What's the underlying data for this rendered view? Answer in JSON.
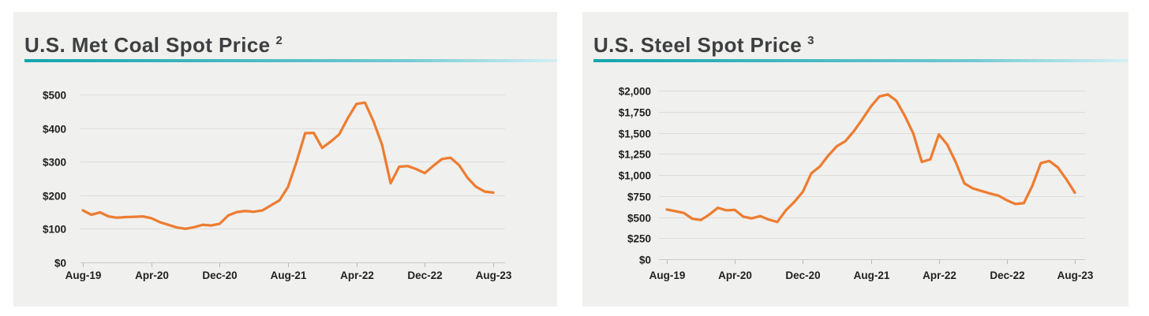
{
  "colors": {
    "line": "#ED7D31",
    "card_background": "#F0F0EF",
    "accent_teal_start": "#14A5AC",
    "accent_teal_mid": "#6FC9D0",
    "accent_teal_end": "#D3EFF3",
    "gridline": "#DCDCDA",
    "axis_line": "#C9C9C7",
    "tick_mark": "#B9B9B7",
    "axis_text": "#1F1F1F",
    "title_text": "#3E3F41"
  },
  "chart_data": [
    {
      "type": "line",
      "title": "U.S. Met Coal Spot Price",
      "footnote_marker": "2",
      "x_frequency": "monthly",
      "x_start": "Aug-19",
      "x_end": "Aug-23",
      "x_tick_labels": [
        "Aug-19",
        "Apr-20",
        "Dec-20",
        "Aug-21",
        "Apr-22",
        "Dec-22",
        "Aug-23"
      ],
      "x_tick_interval_months": 8,
      "ylim": [
        0,
        500
      ],
      "grid": true,
      "legend": "none",
      "y_ticks": [
        {
          "label": "$0",
          "value": 0
        },
        {
          "label": "$100",
          "value": 100
        },
        {
          "label": "$200",
          "value": 200
        },
        {
          "label": "$300",
          "value": 300
        },
        {
          "label": "$400",
          "value": 400
        },
        {
          "label": "$500",
          "value": 500
        }
      ],
      "series": [
        {
          "name": "U.S. Met Coal Spot Price",
          "color": "#ED7D31",
          "values": [
            155,
            142,
            149,
            137,
            133,
            135,
            136,
            137,
            132,
            120,
            112,
            104,
            100,
            105,
            112,
            110,
            115,
            140,
            150,
            153,
            151,
            155,
            170,
            185,
            225,
            300,
            385,
            386,
            341,
            360,
            382,
            430,
            472,
            476,
            420,
            350,
            236,
            285,
            287,
            278,
            266,
            288,
            308,
            312,
            290,
            252,
            225,
            211,
            208
          ]
        }
      ]
    },
    {
      "type": "line",
      "title": "U.S. Steel Spot Price",
      "footnote_marker": "3",
      "x_frequency": "monthly",
      "x_start": "Aug-19",
      "x_end": "Aug-23",
      "x_tick_labels": [
        "Aug-19",
        "Apr-20",
        "Dec-20",
        "Aug-21",
        "Apr-22",
        "Dec-22",
        "Aug-23"
      ],
      "x_tick_interval_months": 8,
      "ylim": [
        0,
        2000
      ],
      "grid": true,
      "legend": "none",
      "y_ticks": [
        {
          "label": "$0",
          "value": 0
        },
        {
          "label": "$250",
          "value": 250
        },
        {
          "label": "$500",
          "value": 500
        },
        {
          "label": "$750",
          "value": 750
        },
        {
          "label": "$1,000",
          "value": 1000
        },
        {
          "label": "$1,250",
          "value": 1250
        },
        {
          "label": "$1,500",
          "value": 1500
        },
        {
          "label": "$1,750",
          "value": 1750
        },
        {
          "label": "$2,000",
          "value": 2000
        }
      ],
      "series": [
        {
          "name": "U.S. Steel Spot Price",
          "color": "#ED7D31",
          "values": [
            590,
            570,
            550,
            480,
            465,
            530,
            610,
            580,
            585,
            505,
            485,
            512,
            470,
            442,
            580,
            680,
            800,
            1020,
            1100,
            1230,
            1340,
            1400,
            1520,
            1660,
            1810,
            1930,
            1955,
            1880,
            1700,
            1490,
            1155,
            1185,
            1480,
            1360,
            1150,
            900,
            840,
            810,
            780,
            755,
            700,
            655,
            665,
            870,
            1140,
            1165,
            1090,
            950,
            790
          ]
        }
      ]
    }
  ]
}
